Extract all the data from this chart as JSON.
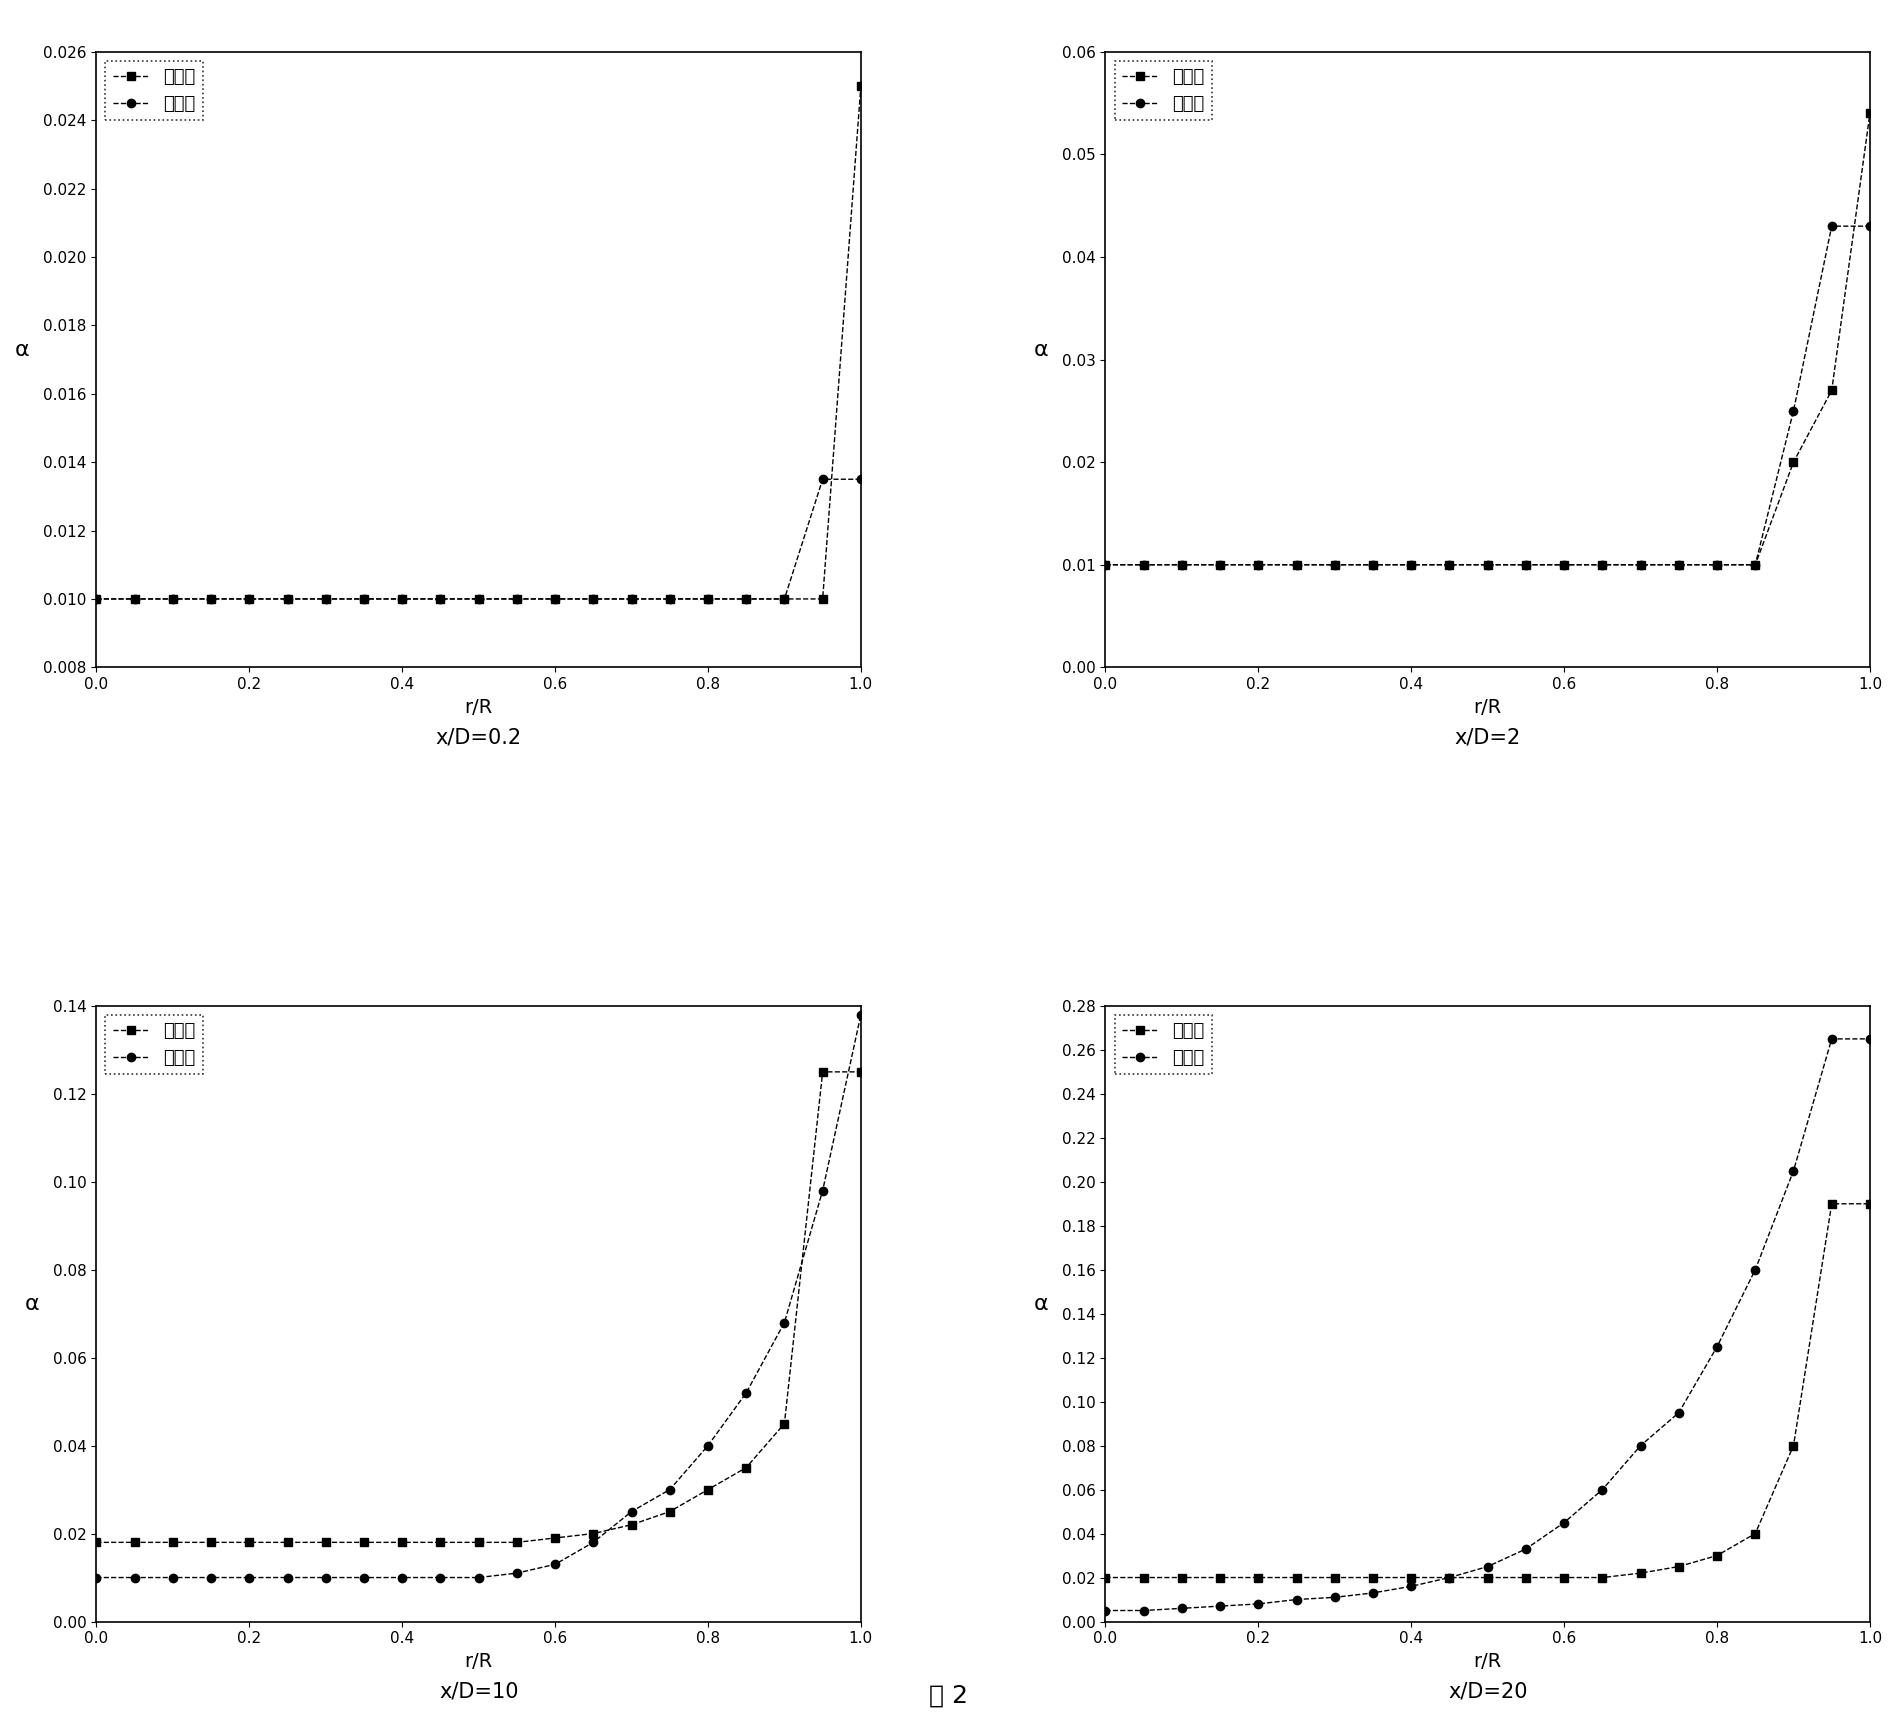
{
  "subplots": [
    {
      "title": "x/D=0.2",
      "ylabel": "α",
      "xlabel": "r/R",
      "ylim": [
        0.008,
        0.026
      ],
      "xlim": [
        0.0,
        1.0
      ],
      "yticks": [
        0.008,
        0.01,
        0.012,
        0.014,
        0.016,
        0.018,
        0.02,
        0.022,
        0.024,
        0.026
      ],
      "xticks": [
        0.0,
        0.2,
        0.4,
        0.6,
        0.8,
        1.0
      ],
      "exp_x": [
        0.0,
        0.05,
        0.1,
        0.15,
        0.2,
        0.25,
        0.3,
        0.35,
        0.4,
        0.45,
        0.5,
        0.55,
        0.6,
        0.65,
        0.7,
        0.75,
        0.8,
        0.85,
        0.9,
        0.95,
        1.0
      ],
      "exp_y": [
        0.01,
        0.01,
        0.01,
        0.01,
        0.01,
        0.01,
        0.01,
        0.01,
        0.01,
        0.01,
        0.01,
        0.01,
        0.01,
        0.01,
        0.01,
        0.01,
        0.01,
        0.01,
        0.01,
        0.01,
        0.025
      ],
      "calc_x": [
        0.0,
        0.05,
        0.1,
        0.15,
        0.2,
        0.25,
        0.3,
        0.35,
        0.4,
        0.45,
        0.5,
        0.55,
        0.6,
        0.65,
        0.7,
        0.75,
        0.8,
        0.85,
        0.9,
        0.95,
        1.0
      ],
      "calc_y": [
        0.01,
        0.01,
        0.01,
        0.01,
        0.01,
        0.01,
        0.01,
        0.01,
        0.01,
        0.01,
        0.01,
        0.01,
        0.01,
        0.01,
        0.01,
        0.01,
        0.01,
        0.01,
        0.01,
        0.0135,
        0.0135
      ]
    },
    {
      "title": "x/D=2",
      "ylabel": "α",
      "xlabel": "r/R",
      "ylim": [
        0.0,
        0.06
      ],
      "xlim": [
        0.0,
        1.0
      ],
      "yticks": [
        0.0,
        0.01,
        0.02,
        0.03,
        0.04,
        0.05,
        0.06
      ],
      "xticks": [
        0.0,
        0.2,
        0.4,
        0.6,
        0.8,
        1.0
      ],
      "exp_x": [
        0.0,
        0.05,
        0.1,
        0.15,
        0.2,
        0.25,
        0.3,
        0.35,
        0.4,
        0.45,
        0.5,
        0.55,
        0.6,
        0.65,
        0.7,
        0.75,
        0.8,
        0.85,
        0.9,
        0.95,
        1.0
      ],
      "exp_y": [
        0.01,
        0.01,
        0.01,
        0.01,
        0.01,
        0.01,
        0.01,
        0.01,
        0.01,
        0.01,
        0.01,
        0.01,
        0.01,
        0.01,
        0.01,
        0.01,
        0.01,
        0.01,
        0.02,
        0.027,
        0.054
      ],
      "calc_x": [
        0.0,
        0.05,
        0.1,
        0.15,
        0.2,
        0.25,
        0.3,
        0.35,
        0.4,
        0.45,
        0.5,
        0.55,
        0.6,
        0.65,
        0.7,
        0.75,
        0.8,
        0.85,
        0.9,
        0.95,
        1.0
      ],
      "calc_y": [
        0.01,
        0.01,
        0.01,
        0.01,
        0.01,
        0.01,
        0.01,
        0.01,
        0.01,
        0.01,
        0.01,
        0.01,
        0.01,
        0.01,
        0.01,
        0.01,
        0.01,
        0.01,
        0.025,
        0.043,
        0.043
      ]
    },
    {
      "title": "x/D=10",
      "ylabel": "α",
      "xlabel": "r/R",
      "ylim": [
        0.0,
        0.14
      ],
      "xlim": [
        0.0,
        1.0
      ],
      "yticks": [
        0.0,
        0.02,
        0.04,
        0.06,
        0.08,
        0.1,
        0.12,
        0.14
      ],
      "xticks": [
        0.0,
        0.2,
        0.4,
        0.6,
        0.8,
        1.0
      ],
      "exp_x": [
        0.0,
        0.05,
        0.1,
        0.15,
        0.2,
        0.25,
        0.3,
        0.35,
        0.4,
        0.45,
        0.5,
        0.55,
        0.6,
        0.65,
        0.7,
        0.75,
        0.8,
        0.85,
        0.9,
        0.95,
        1.0
      ],
      "exp_y": [
        0.018,
        0.018,
        0.018,
        0.018,
        0.018,
        0.018,
        0.018,
        0.018,
        0.018,
        0.018,
        0.018,
        0.018,
        0.019,
        0.02,
        0.022,
        0.025,
        0.03,
        0.035,
        0.045,
        0.125,
        0.125
      ],
      "calc_x": [
        0.0,
        0.05,
        0.1,
        0.15,
        0.2,
        0.25,
        0.3,
        0.35,
        0.4,
        0.45,
        0.5,
        0.55,
        0.6,
        0.65,
        0.7,
        0.75,
        0.8,
        0.85,
        0.9,
        0.95,
        1.0
      ],
      "calc_y": [
        0.01,
        0.01,
        0.01,
        0.01,
        0.01,
        0.01,
        0.01,
        0.01,
        0.01,
        0.01,
        0.01,
        0.011,
        0.013,
        0.018,
        0.025,
        0.03,
        0.04,
        0.052,
        0.068,
        0.098,
        0.138
      ]
    },
    {
      "title": "x/D=20",
      "ylabel": "α",
      "xlabel": "r/R",
      "ylim": [
        0.0,
        0.28
      ],
      "xlim": [
        0.0,
        1.0
      ],
      "yticks": [
        0.0,
        0.02,
        0.04,
        0.06,
        0.08,
        0.1,
        0.12,
        0.14,
        0.16,
        0.18,
        0.2,
        0.22,
        0.24,
        0.26,
        0.28
      ],
      "xticks": [
        0.0,
        0.2,
        0.4,
        0.6,
        0.8,
        1.0
      ],
      "exp_x": [
        0.0,
        0.05,
        0.1,
        0.15,
        0.2,
        0.25,
        0.3,
        0.35,
        0.4,
        0.45,
        0.5,
        0.55,
        0.6,
        0.65,
        0.7,
        0.75,
        0.8,
        0.85,
        0.9,
        0.95,
        1.0
      ],
      "exp_y": [
        0.02,
        0.02,
        0.02,
        0.02,
        0.02,
        0.02,
        0.02,
        0.02,
        0.02,
        0.02,
        0.02,
        0.02,
        0.02,
        0.02,
        0.022,
        0.025,
        0.03,
        0.04,
        0.08,
        0.19,
        0.19
      ],
      "calc_x": [
        0.0,
        0.05,
        0.1,
        0.15,
        0.2,
        0.25,
        0.3,
        0.35,
        0.4,
        0.45,
        0.5,
        0.55,
        0.6,
        0.65,
        0.7,
        0.75,
        0.8,
        0.85,
        0.9,
        0.95,
        1.0
      ],
      "calc_y": [
        0.005,
        0.005,
        0.006,
        0.007,
        0.008,
        0.01,
        0.011,
        0.013,
        0.016,
        0.02,
        0.025,
        0.033,
        0.045,
        0.06,
        0.08,
        0.095,
        0.125,
        0.16,
        0.205,
        0.265,
        0.265
      ]
    }
  ],
  "legend_label_exp": "实验值",
  "legend_label_calc": "计算值",
  "figure_title": "图 2",
  "bg_color": "#ffffff",
  "line_color": "#000000",
  "exp_marker": "s",
  "calc_marker": "o",
  "marker_size": 6,
  "linestyle": "--",
  "title_fontsize": 15,
  "label_fontsize": 14,
  "tick_fontsize": 11,
  "legend_fontsize": 13
}
